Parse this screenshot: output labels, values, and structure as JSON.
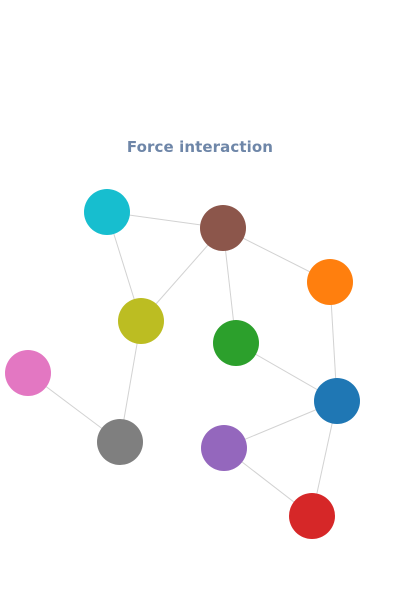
{
  "title": "Force interaction",
  "graph": {
    "nodes": [
      {
        "id": "cyan",
        "color": "#17becf"
      },
      {
        "id": "brown",
        "color": "#8c564b"
      },
      {
        "id": "olive",
        "color": "#bcbd22"
      },
      {
        "id": "green",
        "color": "#2ca02c"
      },
      {
        "id": "orange",
        "color": "#ff7f0e"
      },
      {
        "id": "pink",
        "color": "#e377c2"
      },
      {
        "id": "gray",
        "color": "#7f7f7f"
      },
      {
        "id": "blue",
        "color": "#1f77b4"
      },
      {
        "id": "purple",
        "color": "#9467bd"
      },
      {
        "id": "red",
        "color": "#d62728"
      }
    ],
    "edges": [
      [
        "cyan",
        "brown"
      ],
      [
        "cyan",
        "olive"
      ],
      [
        "brown",
        "olive"
      ],
      [
        "brown",
        "green"
      ],
      [
        "brown",
        "orange"
      ],
      [
        "olive",
        "gray"
      ],
      [
        "pink",
        "gray"
      ],
      [
        "green",
        "blue"
      ],
      [
        "orange",
        "blue"
      ],
      [
        "blue",
        "purple"
      ],
      [
        "blue",
        "red"
      ],
      [
        "purple",
        "red"
      ]
    ]
  }
}
